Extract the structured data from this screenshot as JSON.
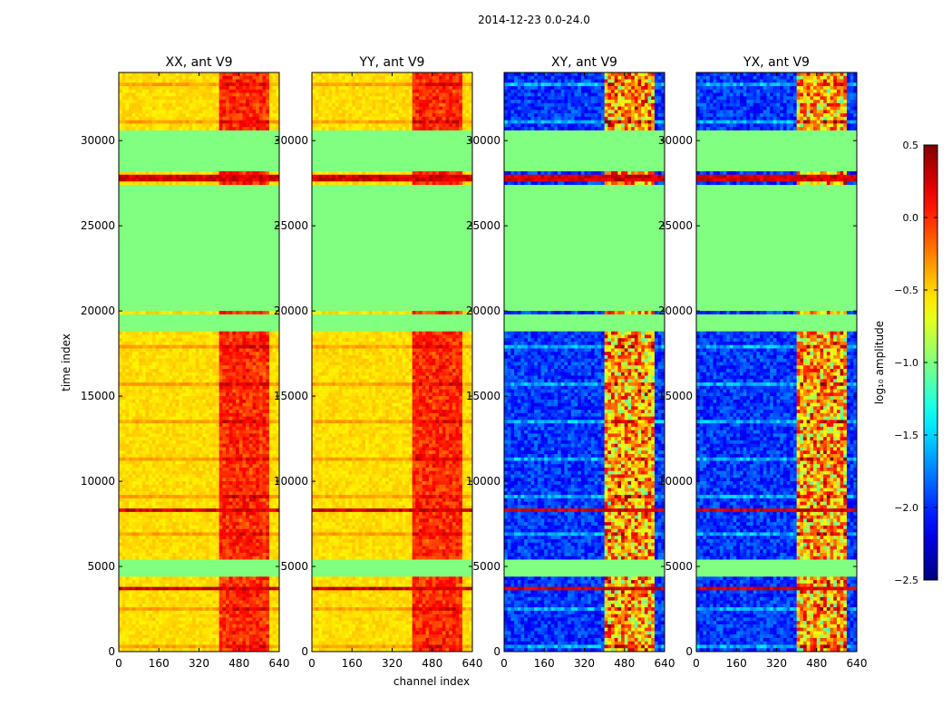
{
  "figure_title": "2014-12-23 0.0-24.0",
  "chart_data": {
    "type": "heatmap",
    "suptitle": "2014-12-23 0.0-24.0",
    "xlabel": "channel index",
    "ylabel": "time index",
    "xlim": [
      0,
      640
    ],
    "ylim": [
      0,
      34000
    ],
    "x_ticks": [
      0,
      160,
      320,
      480,
      640
    ],
    "y_ticks": [
      0,
      5000,
      10000,
      15000,
      20000,
      25000,
      30000
    ],
    "panels": [
      {
        "title": "XX, ant V9",
        "kind": "auto"
      },
      {
        "title": "YY, ant V9",
        "kind": "auto"
      },
      {
        "title": "XY, ant V9",
        "kind": "cross"
      },
      {
        "title": "YX, ant V9",
        "kind": "cross"
      }
    ],
    "colorbar": {
      "label": "log₁₀ amplitude",
      "range": [
        -2.5,
        0.5
      ],
      "ticks": [
        0.5,
        0.0,
        -0.5,
        -1.0,
        -1.5,
        -2.0,
        -2.5
      ],
      "colormap": "jet"
    },
    "flagged_time_ranges": [
      [
        4500,
        5400
      ],
      [
        18800,
        19900
      ],
      [
        20000,
        27500
      ],
      [
        28200,
        30600
      ]
    ],
    "saturated_time_ranges": [
      [
        3560,
        3720
      ],
      [
        8220,
        8480
      ],
      [
        27600,
        27950
      ]
    ],
    "rfi_channel_ranges": [
      [
        400,
        600
      ]
    ],
    "approx_auto_level": -0.6,
    "approx_cross_level": -2.2,
    "flag_fill_value": -1.0
  }
}
